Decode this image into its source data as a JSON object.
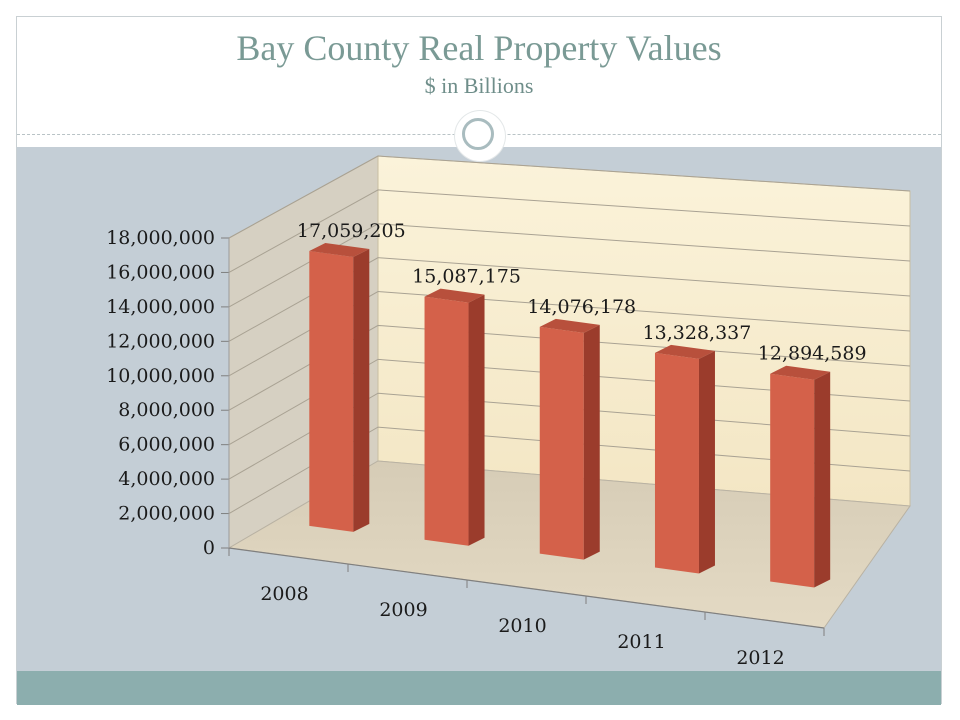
{
  "slide": {
    "title": "Bay County Real Property Values",
    "subtitle": "$ in Billions"
  },
  "colors": {
    "bar_front": "#d4614a",
    "bar_side": "#9b3c2c",
    "bar_top": "#b8503c",
    "back_wall": "#f7efd6",
    "side_wall": "#d6d0c2",
    "floor": "#ddd3bd",
    "content_bg": "#c4ced6",
    "footer_band": "#8caeae",
    "title_color": "#7a9a95"
  },
  "chart_data": {
    "type": "bar",
    "categories": [
      "2008",
      "2009",
      "2010",
      "2011",
      "2012"
    ],
    "values": [
      17059205,
      15087175,
      14076178,
      13328337,
      12894589
    ],
    "data_labels": [
      "17,059,205",
      "15,087,175",
      "14,076,178",
      "13,328,337",
      "12,894,589"
    ],
    "title": "",
    "xlabel": "",
    "ylabel": "",
    "ylim": [
      0,
      18000000
    ],
    "yticks": [
      0,
      2000000,
      4000000,
      6000000,
      8000000,
      10000000,
      12000000,
      14000000,
      16000000,
      18000000
    ],
    "ytick_labels": [
      "0",
      "2,000,000",
      "4,000,000",
      "6,000,000",
      "8,000,000",
      "10,000,000",
      "12,000,000",
      "14,000,000",
      "16,000,000",
      "18,000,000"
    ],
    "grid": true,
    "legend": "none",
    "style": "3d-perspective-columns"
  }
}
